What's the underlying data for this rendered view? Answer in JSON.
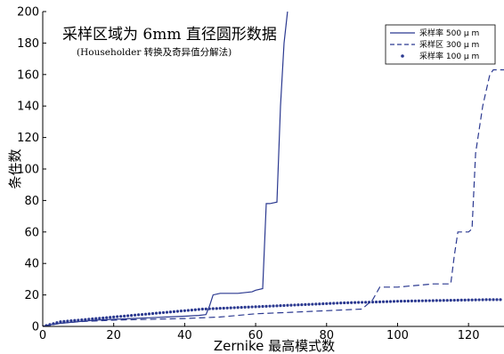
{
  "chart_data": {
    "type": "line",
    "title": "采样区域为 6mm 直径圆形数据",
    "subtitle": "(Householder 转换及奇异值分解法)",
    "xlabel": "Zernike 最高模式数",
    "ylabel": "条件数",
    "xlim": [
      0,
      130
    ],
    "ylim": [
      0,
      200
    ],
    "xticks": [
      0,
      20,
      40,
      60,
      80,
      100,
      120
    ],
    "yticks": [
      0,
      20,
      40,
      60,
      80,
      100,
      120,
      140,
      160,
      180,
      200
    ],
    "grid": false,
    "legend_position": "top-right",
    "series": [
      {
        "name": "采样率 500 μ m",
        "style": "solid",
        "color": "#2b3990",
        "x": [
          0,
          2,
          5,
          10,
          15,
          20,
          25,
          30,
          35,
          40,
          44,
          46,
          47,
          48,
          50,
          55,
          59,
          60,
          62,
          63,
          64,
          66,
          67,
          68,
          69
        ],
        "y": [
          0,
          1,
          2,
          3,
          4,
          4.5,
          5,
          5.5,
          6,
          6.5,
          7,
          7.5,
          13,
          20,
          21,
          21,
          22,
          23,
          24,
          78,
          78,
          79,
          140,
          180,
          200
        ]
      },
      {
        "name": "采样区 300 μ m",
        "style": "dashed",
        "color": "#2b3990",
        "x": [
          0,
          5,
          10,
          20,
          30,
          40,
          50,
          60,
          70,
          80,
          90,
          93,
          95,
          100,
          105,
          110,
          115,
          116,
          117,
          120,
          121,
          122,
          124,
          126,
          127,
          130
        ],
        "y": [
          0,
          2,
          3,
          4,
          4.5,
          5,
          6,
          8,
          9,
          10,
          11,
          17,
          25,
          25,
          26,
          27,
          27,
          45,
          60,
          60,
          62,
          110,
          140,
          160,
          163,
          163
        ]
      },
      {
        "name": "采样率 100 μ m",
        "style": "dots",
        "color": "#2b3990",
        "x": [
          0,
          5,
          10,
          15,
          20,
          25,
          30,
          35,
          40,
          45,
          50,
          55,
          60,
          65,
          70,
          75,
          80,
          85,
          90,
          95,
          100,
          105,
          110,
          115,
          120,
          125,
          130
        ],
        "y": [
          0,
          3,
          4,
          5,
          6,
          7,
          8,
          9,
          10,
          11,
          11.5,
          12,
          12.5,
          13,
          13.5,
          14,
          14.5,
          15,
          15.3,
          15.6,
          16,
          16.2,
          16.4,
          16.6,
          16.8,
          17,
          17
        ]
      }
    ]
  }
}
